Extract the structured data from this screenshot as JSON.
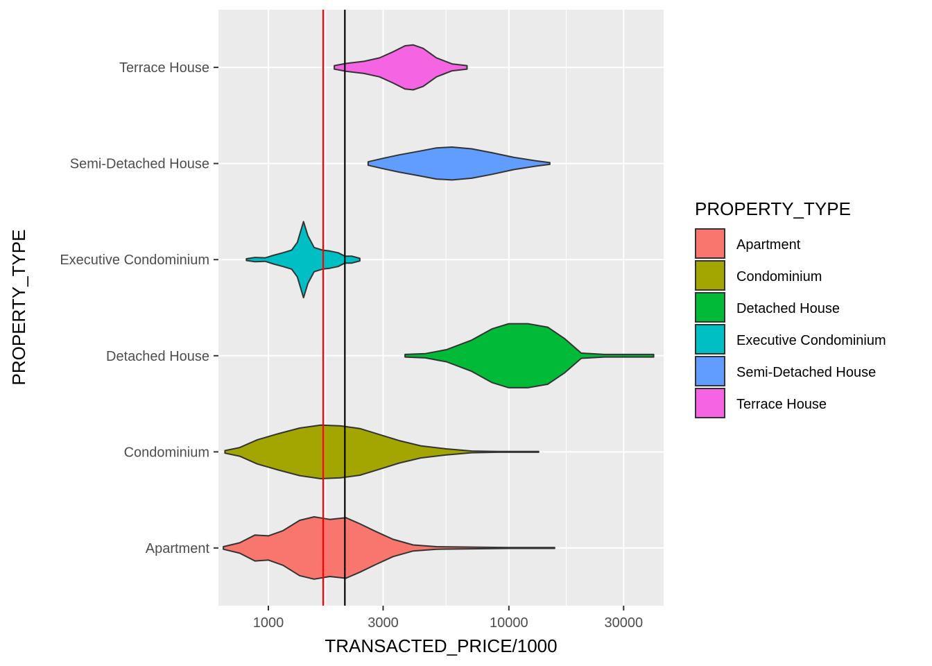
{
  "chart_data": {
    "type": "violin",
    "title": "",
    "xlabel": "TRANSACTED_PRICE/1000",
    "ylabel": "PROPERTY_TYPE",
    "x_scale": "log10",
    "xlim": [
      620,
      44000
    ],
    "x_ticks": [
      1000,
      3000,
      10000,
      30000
    ],
    "x_tick_labels": [
      "1000",
      "3000",
      "10000",
      "30000"
    ],
    "categories": [
      "Apartment",
      "Condominium",
      "Detached House",
      "Executive Condominium",
      "Semi-Detached House",
      "Terrace House"
    ],
    "grid": true,
    "legend": {
      "title": "PROPERTY_TYPE",
      "position": "right",
      "entries": [
        "Apartment",
        "Condominium",
        "Detached House",
        "Executive Condominium",
        "Semi-Detached House",
        "Terrace House"
      ]
    },
    "reference_lines": [
      {
        "x": 1690,
        "color": "#ff0000"
      },
      {
        "x": 2080,
        "color": "#000000"
      }
    ],
    "series": [
      {
        "category": "Apartment",
        "color": "#F8766D",
        "density_profile": [
          [
            650,
            0.03
          ],
          [
            760,
            0.12
          ],
          [
            880,
            0.3
          ],
          [
            1000,
            0.28
          ],
          [
            1150,
            0.4
          ],
          [
            1350,
            0.64
          ],
          [
            1550,
            0.72
          ],
          [
            1800,
            0.66
          ],
          [
            2100,
            0.7
          ],
          [
            2400,
            0.56
          ],
          [
            2800,
            0.38
          ],
          [
            3300,
            0.2
          ],
          [
            4000,
            0.07
          ],
          [
            5000,
            0.03
          ],
          [
            7000,
            0.02
          ],
          [
            10000,
            0.01
          ],
          [
            15500,
            0.01
          ]
        ]
      },
      {
        "category": "Condominium",
        "color": "#A3A500",
        "density_profile": [
          [
            660,
            0.03
          ],
          [
            760,
            0.1
          ],
          [
            900,
            0.28
          ],
          [
            1100,
            0.42
          ],
          [
            1350,
            0.55
          ],
          [
            1650,
            0.62
          ],
          [
            2000,
            0.6
          ],
          [
            2400,
            0.54
          ],
          [
            2900,
            0.4
          ],
          [
            3500,
            0.26
          ],
          [
            4300,
            0.14
          ],
          [
            5500,
            0.07
          ],
          [
            7000,
            0.02
          ],
          [
            9000,
            0.01
          ],
          [
            13300,
            0.01
          ]
        ]
      },
      {
        "category": "Detached House",
        "color": "#00BA38",
        "density_profile": [
          [
            3700,
            0.03
          ],
          [
            4500,
            0.05
          ],
          [
            5500,
            0.14
          ],
          [
            7000,
            0.36
          ],
          [
            8500,
            0.62
          ],
          [
            10000,
            0.74
          ],
          [
            12000,
            0.74
          ],
          [
            14500,
            0.66
          ],
          [
            17000,
            0.4
          ],
          [
            20000,
            0.06
          ],
          [
            25000,
            0.03
          ],
          [
            30000,
            0.03
          ],
          [
            40000,
            0.03
          ]
        ]
      },
      {
        "category": "Executive Condominium",
        "color": "#00BFC4",
        "density_profile": [
          [
            810,
            0.02
          ],
          [
            880,
            0.05
          ],
          [
            970,
            0.04
          ],
          [
            1050,
            0.1
          ],
          [
            1150,
            0.16
          ],
          [
            1250,
            0.22
          ],
          [
            1320,
            0.4
          ],
          [
            1400,
            0.88
          ],
          [
            1460,
            0.55
          ],
          [
            1550,
            0.28
          ],
          [
            1680,
            0.22
          ],
          [
            1800,
            0.2
          ],
          [
            1950,
            0.16
          ],
          [
            2080,
            0.08
          ],
          [
            2220,
            0.08
          ],
          [
            2400,
            0.03
          ]
        ]
      },
      {
        "category": "Semi-Detached House",
        "color": "#619CFF",
        "density_profile": [
          [
            2600,
            0.04
          ],
          [
            3000,
            0.12
          ],
          [
            3500,
            0.2
          ],
          [
            4200,
            0.28
          ],
          [
            5000,
            0.36
          ],
          [
            5800,
            0.38
          ],
          [
            7000,
            0.34
          ],
          [
            8500,
            0.25
          ],
          [
            10500,
            0.14
          ],
          [
            13000,
            0.06
          ],
          [
            14800,
            0.02
          ]
        ]
      },
      {
        "category": "Terrace House",
        "color": "#F564E3",
        "density_profile": [
          [
            1880,
            0.04
          ],
          [
            2100,
            0.09
          ],
          [
            2500,
            0.14
          ],
          [
            2900,
            0.22
          ],
          [
            3300,
            0.36
          ],
          [
            3700,
            0.5
          ],
          [
            4000,
            0.52
          ],
          [
            4400,
            0.44
          ],
          [
            5000,
            0.22
          ],
          [
            5800,
            0.08
          ],
          [
            6700,
            0.04
          ]
        ]
      }
    ]
  }
}
